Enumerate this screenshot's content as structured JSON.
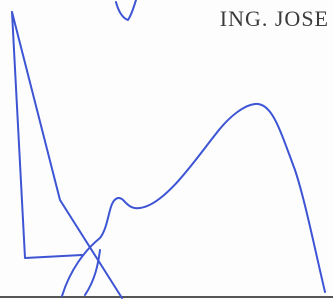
{
  "document": {
    "name": "ING. JOSE"
  }
}
